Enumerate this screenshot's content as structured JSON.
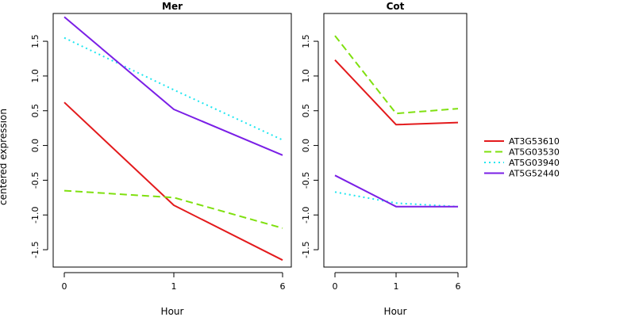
{
  "chart_data": {
    "type": "line",
    "ylabel": "centered expression",
    "legend_placement": "right",
    "series_styles": [
      {
        "name": "AT3G53610",
        "color": "#e31a1c",
        "dash": "solid"
      },
      {
        "name": "AT5G03530",
        "color": "#7fe00f",
        "dash": "dashed"
      },
      {
        "name": "AT5G03940",
        "color": "#1fe6f0",
        "dash": "dotted"
      },
      {
        "name": "AT5G52440",
        "color": "#7a1fe6",
        "dash": "solid"
      }
    ],
    "panels": [
      {
        "title": "Mer",
        "xlabel": "Hour",
        "categories": [
          "0",
          "1",
          "6"
        ],
        "ylim": [
          -1.75,
          1.9
        ],
        "yticks": [
          -1.5,
          -1.0,
          -0.5,
          0.0,
          0.5,
          1.0,
          1.5
        ],
        "ytick_labels": [
          "-1.5",
          "-1.0",
          "-0.5",
          "0.0",
          "0.5",
          "1.0",
          "1.5"
        ],
        "series": [
          {
            "name": "AT3G53610",
            "values": [
              0.62,
              -0.86,
              -1.65
            ]
          },
          {
            "name": "AT5G03530",
            "values": [
              -0.65,
              -0.75,
              -1.19
            ]
          },
          {
            "name": "AT5G03940",
            "values": [
              1.55,
              0.8,
              0.08
            ]
          },
          {
            "name": "AT5G52440",
            "values": [
              1.85,
              0.52,
              -0.14
            ]
          }
        ]
      },
      {
        "title": "Cot",
        "xlabel": "Hour",
        "categories": [
          "0",
          "1",
          "6"
        ],
        "ylim": [
          -1.75,
          1.9
        ],
        "yticks": [
          -1.5,
          -1.0,
          -0.5,
          0.0,
          0.5,
          1.0,
          1.5
        ],
        "ytick_labels": [
          "-1.5",
          "-1.0",
          "-0.5",
          "0.0",
          "0.5",
          "1.0",
          "1.5"
        ],
        "series": [
          {
            "name": "AT3G53610",
            "values": [
              1.23,
              0.3,
              0.33
            ]
          },
          {
            "name": "AT5G03530",
            "values": [
              1.58,
              0.46,
              0.53
            ]
          },
          {
            "name": "AT5G03940",
            "values": [
              -0.67,
              -0.83,
              -0.88
            ]
          },
          {
            "name": "AT5G52440",
            "values": [
              -0.43,
              -0.88,
              -0.88
            ]
          }
        ]
      }
    ]
  }
}
